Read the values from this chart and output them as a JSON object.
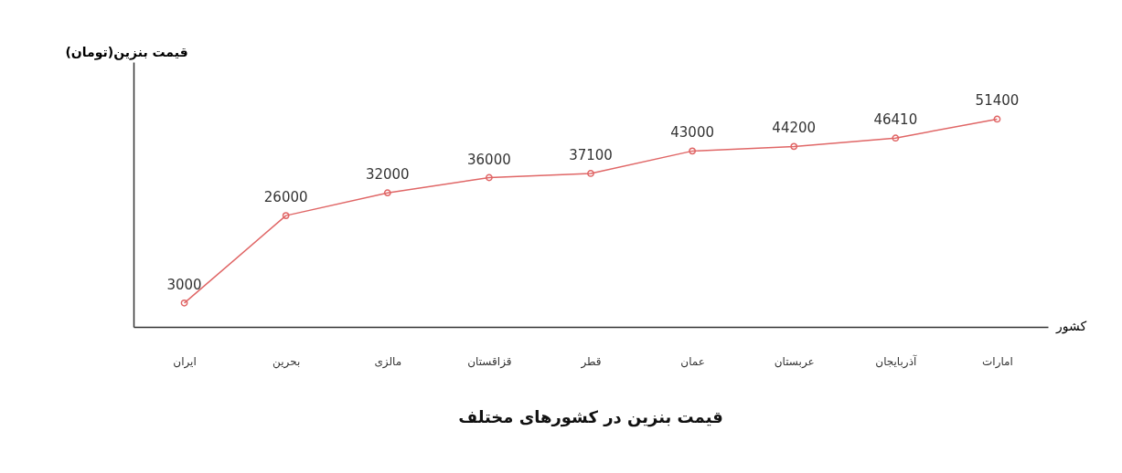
{
  "chart_data": {
    "type": "line",
    "title": "قیمت بنزین در کشورهای مختلف",
    "xlabel": "کشور",
    "ylabel": "(تومان)قیمت بنزین",
    "categories": [
      "ایران",
      "بحرین",
      "مالزی",
      "قزاقستان",
      "قطر",
      "عمان",
      "عربستان",
      "آذربایجان",
      "امارات"
    ],
    "series": [
      {
        "color": "#e06666",
        "values": [
          3000,
          26000,
          32000,
          36000,
          37100,
          43000,
          44200,
          46410,
          51400
        ]
      }
    ],
    "data_labels": true,
    "tick_labels": "x",
    "marker": "circle",
    "line_style": "solid",
    "grid": false
  }
}
